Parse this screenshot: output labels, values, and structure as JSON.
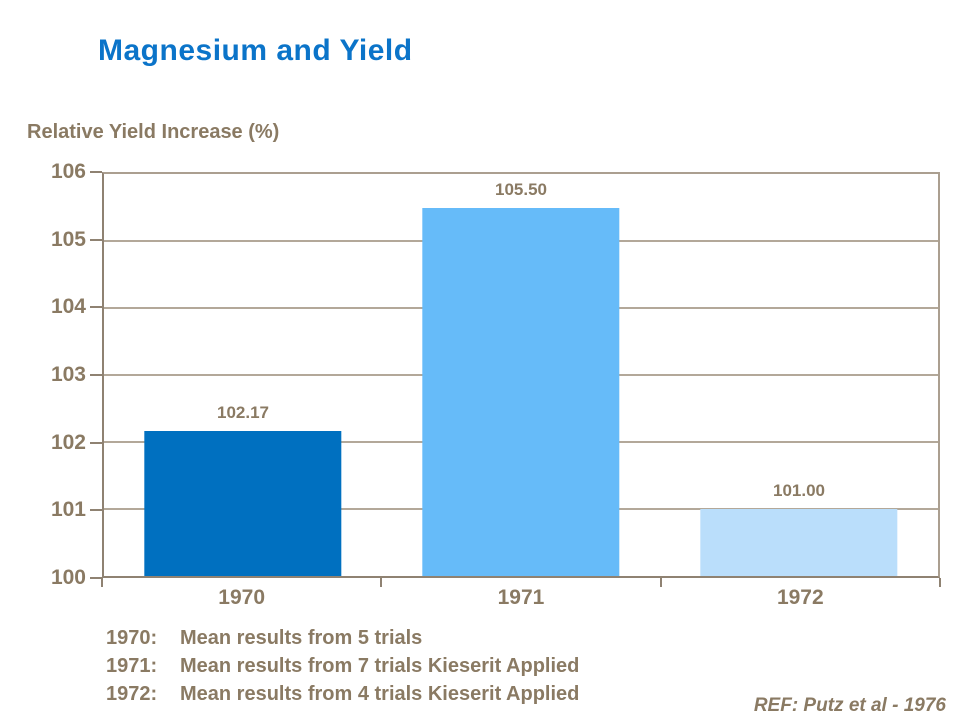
{
  "slide": {
    "reference": "REF: Putz et al - 1976"
  },
  "chart_data": {
    "type": "bar",
    "title": "Magnesium and Yield",
    "ylabel": "Relative Yield Increase (%)",
    "xlabel": "",
    "categories": [
      "1970",
      "1971",
      "1972"
    ],
    "values": [
      102.17,
      105.5,
      101.0
    ],
    "value_labels": [
      "102.17",
      "105.50",
      "101.00"
    ],
    "bar_colors": [
      "#0070c0",
      "#66bbf9",
      "#badefb"
    ],
    "ylim": [
      100,
      106
    ],
    "yticks": [
      106,
      105,
      104,
      103,
      102,
      101,
      100
    ],
    "grid": true,
    "legend": false
  },
  "footnotes": [
    {
      "year": "1970:",
      "text": "Mean results from 5 trials"
    },
    {
      "year": "1971:",
      "text": "Mean results from 7 trials Kieserit Applied"
    },
    {
      "year": "1972:",
      "text": "Mean results from 4 trials Kieserit Applied"
    }
  ],
  "colors": {
    "title": "#0b74c9",
    "text": "#8a7a63",
    "axis": "#8f8272",
    "gridline": "#b3a899",
    "border": "#ab9f90",
    "background": "#ffffff"
  }
}
